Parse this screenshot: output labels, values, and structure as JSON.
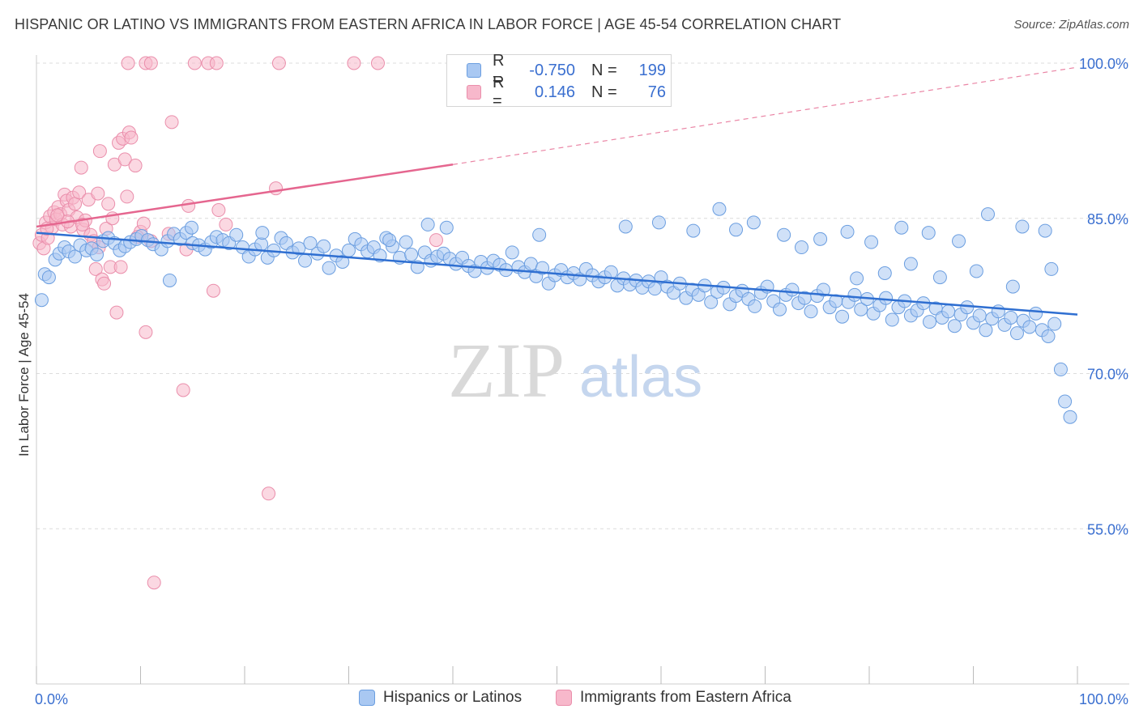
{
  "header": {
    "title": "HISPANIC OR LATINO VS IMMIGRANTS FROM EASTERN AFRICA IN LABOR FORCE | AGE 45-54 CORRELATION CHART",
    "source": "Source: ZipAtlas.com"
  },
  "watermark": {
    "zip": "ZIP",
    "atlas": "atlas"
  },
  "legend_top": [
    {
      "r_label": "R =",
      "r_value": "-0.750",
      "n_label": "N =",
      "n_value": "199"
    },
    {
      "r_label": "R =",
      "r_value": "0.146",
      "n_label": "N =",
      "n_value": "76"
    }
  ],
  "legend_bottom": [
    "Hispanics or Latinos",
    "Immigrants from Eastern Africa"
  ],
  "colors": {
    "blue_fill": "#a9c8f2",
    "blue_stroke": "#6b9ee0",
    "blue_line": "#2f6fd1",
    "pink_fill": "#f7b8cb",
    "pink_stroke": "#ea8eab",
    "pink_line": "#e5668f",
    "tick_label": "#3a6fd0",
    "grid": "#dcdcdc"
  },
  "chart_data": {
    "type": "scatter",
    "title": "HISPANIC OR LATINO VS IMMIGRANTS FROM EASTERN AFRICA IN LABOR FORCE | AGE 45-54 CORRELATION CHART",
    "xlabel": "",
    "ylabel": "In Labor Force | Age 45-54",
    "xlim": [
      0,
      100
    ],
    "ylim": [
      40,
      100
    ],
    "x_tick_labels": [
      "0.0%",
      "100.0%"
    ],
    "y_ticks": [
      55,
      70,
      85,
      100
    ],
    "y_tick_labels": [
      "55.0%",
      "70.0%",
      "85.0%",
      "100.0%"
    ],
    "grid": "horizontal dashed",
    "legend_position": "top-center",
    "series": [
      {
        "name": "Hispanics or Latinos",
        "color": "#a9c8f2",
        "R": -0.75,
        "N": 199,
        "trend": {
          "x": [
            0,
            100
          ],
          "y": [
            83.6,
            75.7
          ],
          "style": "solid"
        },
        "points": [
          [
            0.5,
            77.1
          ],
          [
            0.8,
            79.6
          ],
          [
            1.2,
            79.3
          ],
          [
            1.8,
            81.0
          ],
          [
            2.2,
            81.6
          ],
          [
            2.7,
            82.2
          ],
          [
            3.1,
            81.8
          ],
          [
            3.7,
            81.3
          ],
          [
            4.2,
            82.4
          ],
          [
            4.8,
            81.9
          ],
          [
            5.3,
            82.1
          ],
          [
            5.8,
            81.5
          ],
          [
            6.4,
            82.8
          ],
          [
            6.9,
            83.1
          ],
          [
            7.5,
            82.6
          ],
          [
            8.0,
            81.9
          ],
          [
            8.5,
            82.3
          ],
          [
            9.0,
            82.7
          ],
          [
            9.6,
            83.0
          ],
          [
            10.1,
            83.3
          ],
          [
            10.7,
            82.9
          ],
          [
            11.2,
            82.5
          ],
          [
            12.0,
            82.0
          ],
          [
            12.6,
            82.8
          ],
          [
            13.2,
            83.5
          ],
          [
            13.8,
            83.0
          ],
          [
            14.4,
            83.6
          ],
          [
            15.0,
            82.6
          ],
          [
            15.6,
            82.4
          ],
          [
            16.2,
            82.0
          ],
          [
            16.8,
            82.7
          ],
          [
            17.3,
            83.2
          ],
          [
            17.9,
            82.9
          ],
          [
            18.5,
            82.6
          ],
          [
            19.2,
            83.4
          ],
          [
            19.8,
            82.2
          ],
          [
            20.4,
            81.3
          ],
          [
            21.0,
            82.0
          ],
          [
            21.6,
            82.5
          ],
          [
            22.2,
            81.2
          ],
          [
            22.8,
            81.9
          ],
          [
            23.5,
            83.1
          ],
          [
            24.0,
            82.6
          ],
          [
            24.6,
            81.7
          ],
          [
            25.2,
            82.1
          ],
          [
            25.8,
            80.9
          ],
          [
            26.3,
            82.6
          ],
          [
            27.0,
            81.6
          ],
          [
            27.6,
            82.3
          ],
          [
            28.1,
            80.2
          ],
          [
            28.8,
            81.4
          ],
          [
            29.4,
            80.8
          ],
          [
            30.0,
            81.9
          ],
          [
            30.6,
            83.0
          ],
          [
            31.2,
            82.5
          ],
          [
            31.8,
            81.8
          ],
          [
            32.4,
            82.2
          ],
          [
            33.0,
            81.4
          ],
          [
            33.6,
            83.1
          ],
          [
            34.2,
            82.3
          ],
          [
            34.9,
            81.2
          ],
          [
            35.5,
            82.7
          ],
          [
            36.0,
            81.5
          ],
          [
            36.6,
            80.3
          ],
          [
            37.3,
            81.7
          ],
          [
            37.9,
            80.9
          ],
          [
            38.5,
            81.3
          ],
          [
            39.1,
            81.6
          ],
          [
            39.7,
            81.1
          ],
          [
            40.3,
            80.6
          ],
          [
            40.9,
            81.2
          ],
          [
            41.5,
            80.4
          ],
          [
            42.1,
            79.9
          ],
          [
            42.7,
            80.8
          ],
          [
            43.3,
            80.2
          ],
          [
            43.9,
            80.9
          ],
          [
            44.5,
            80.5
          ],
          [
            45.1,
            80.0
          ],
          [
            45.7,
            81.7
          ],
          [
            46.3,
            80.3
          ],
          [
            46.9,
            79.8
          ],
          [
            47.5,
            80.6
          ],
          [
            48.0,
            79.4
          ],
          [
            48.6,
            80.2
          ],
          [
            49.2,
            78.7
          ],
          [
            49.8,
            79.5
          ],
          [
            50.4,
            80.0
          ],
          [
            51.0,
            79.3
          ],
          [
            51.6,
            79.7
          ],
          [
            52.2,
            79.1
          ],
          [
            52.8,
            80.1
          ],
          [
            53.4,
            79.5
          ],
          [
            54.0,
            78.9
          ],
          [
            54.6,
            79.3
          ],
          [
            55.2,
            79.8
          ],
          [
            55.8,
            78.5
          ],
          [
            56.4,
            79.2
          ],
          [
            57.0,
            78.6
          ],
          [
            57.6,
            79.0
          ],
          [
            58.2,
            78.3
          ],
          [
            58.8,
            78.9
          ],
          [
            59.4,
            78.2
          ],
          [
            60.0,
            79.3
          ],
          [
            60.6,
            78.4
          ],
          [
            61.2,
            77.8
          ],
          [
            61.8,
            78.7
          ],
          [
            62.4,
            77.3
          ],
          [
            63.0,
            78.1
          ],
          [
            63.6,
            77.6
          ],
          [
            64.2,
            78.5
          ],
          [
            64.8,
            76.9
          ],
          [
            65.4,
            77.9
          ],
          [
            66.0,
            78.3
          ],
          [
            66.6,
            76.7
          ],
          [
            67.2,
            77.5
          ],
          [
            67.8,
            78.0
          ],
          [
            68.4,
            77.2
          ],
          [
            69.0,
            76.5
          ],
          [
            69.6,
            77.8
          ],
          [
            70.2,
            78.4
          ],
          [
            70.8,
            77.0
          ],
          [
            71.4,
            76.2
          ],
          [
            72.0,
            77.6
          ],
          [
            72.6,
            78.1
          ],
          [
            73.2,
            76.8
          ],
          [
            73.8,
            77.3
          ],
          [
            74.4,
            76.0
          ],
          [
            75.0,
            77.5
          ],
          [
            75.6,
            78.1
          ],
          [
            76.2,
            76.4
          ],
          [
            76.8,
            77.0
          ],
          [
            77.4,
            75.5
          ],
          [
            78.0,
            76.9
          ],
          [
            78.6,
            77.6
          ],
          [
            79.2,
            76.2
          ],
          [
            79.8,
            77.2
          ],
          [
            80.4,
            75.8
          ],
          [
            81.0,
            76.6
          ],
          [
            81.6,
            77.3
          ],
          [
            82.2,
            75.2
          ],
          [
            82.8,
            76.4
          ],
          [
            83.4,
            77.0
          ],
          [
            84.0,
            75.6
          ],
          [
            84.6,
            76.1
          ],
          [
            85.2,
            76.8
          ],
          [
            85.8,
            75.0
          ],
          [
            86.4,
            76.3
          ],
          [
            87.0,
            75.4
          ],
          [
            87.6,
            76.0
          ],
          [
            88.2,
            74.6
          ],
          [
            88.8,
            75.7
          ],
          [
            89.4,
            76.4
          ],
          [
            90.0,
            74.9
          ],
          [
            90.6,
            75.6
          ],
          [
            91.2,
            74.2
          ],
          [
            91.8,
            75.3
          ],
          [
            92.4,
            76.0
          ],
          [
            93.0,
            74.7
          ],
          [
            93.6,
            75.4
          ],
          [
            94.2,
            73.9
          ],
          [
            94.8,
            75.1
          ],
          [
            95.4,
            74.5
          ],
          [
            96.0,
            75.8
          ],
          [
            96.6,
            74.2
          ],
          [
            97.2,
            73.6
          ],
          [
            97.8,
            74.8
          ],
          [
            98.4,
            70.4
          ],
          [
            98.8,
            67.3
          ],
          [
            99.3,
            65.8
          ],
          [
            12.8,
            79.0
          ],
          [
            14.9,
            84.1
          ],
          [
            21.7,
            83.6
          ],
          [
            33.9,
            82.9
          ],
          [
            37.6,
            84.4
          ],
          [
            39.4,
            84.1
          ],
          [
            48.3,
            83.4
          ],
          [
            56.6,
            84.2
          ],
          [
            59.8,
            84.6
          ],
          [
            63.1,
            83.8
          ],
          [
            65.6,
            85.9
          ],
          [
            67.2,
            83.9
          ],
          [
            68.9,
            84.6
          ],
          [
            71.8,
            83.4
          ],
          [
            73.5,
            82.2
          ],
          [
            75.3,
            83.0
          ],
          [
            77.9,
            83.7
          ],
          [
            80.2,
            82.7
          ],
          [
            83.1,
            84.1
          ],
          [
            85.7,
            83.6
          ],
          [
            88.6,
            82.8
          ],
          [
            91.4,
            85.4
          ],
          [
            94.7,
            84.2
          ],
          [
            96.9,
            83.8
          ],
          [
            97.5,
            80.1
          ],
          [
            93.8,
            78.4
          ],
          [
            90.3,
            79.9
          ],
          [
            86.8,
            79.3
          ],
          [
            84.0,
            80.6
          ],
          [
            81.5,
            79.7
          ],
          [
            78.8,
            79.2
          ]
        ]
      },
      {
        "name": "Immigrants from Eastern Africa",
        "color": "#f7b8cb",
        "R": 0.146,
        "N": 76,
        "trend": {
          "x": [
            0,
            40
          ],
          "y": [
            84.2,
            90.2
          ],
          "style": "solid",
          "extension": {
            "x": [
              40,
              100
            ],
            "y": [
              90.2,
              99.6
            ],
            "style": "dashed"
          }
        },
        "points": [
          [
            0.3,
            82.6
          ],
          [
            0.5,
            83.4
          ],
          [
            0.7,
            82.1
          ],
          [
            0.9,
            84.6
          ],
          [
            1.1,
            83.1
          ],
          [
            1.3,
            85.2
          ],
          [
            1.5,
            84.1
          ],
          [
            1.7,
            85.6
          ],
          [
            1.9,
            84.9
          ],
          [
            2.1,
            86.1
          ],
          [
            2.3,
            85.4
          ],
          [
            2.5,
            84.4
          ],
          [
            2.7,
            87.3
          ],
          [
            2.9,
            86.7
          ],
          [
            3.1,
            85.8
          ],
          [
            3.3,
            84.2
          ],
          [
            3.5,
            87.0
          ],
          [
            3.7,
            86.4
          ],
          [
            3.9,
            85.1
          ],
          [
            4.1,
            87.5
          ],
          [
            4.3,
            89.9
          ],
          [
            4.5,
            83.9
          ],
          [
            4.7,
            84.8
          ],
          [
            5.0,
            86.8
          ],
          [
            5.2,
            83.4
          ],
          [
            5.5,
            82.8
          ],
          [
            5.7,
            80.1
          ],
          [
            5.9,
            87.4
          ],
          [
            6.1,
            91.5
          ],
          [
            6.3,
            79.1
          ],
          [
            6.5,
            78.7
          ],
          [
            6.7,
            84.0
          ],
          [
            6.9,
            86.4
          ],
          [
            7.1,
            80.3
          ],
          [
            7.3,
            85.0
          ],
          [
            7.5,
            90.2
          ],
          [
            7.7,
            75.9
          ],
          [
            7.9,
            92.3
          ],
          [
            8.1,
            80.3
          ],
          [
            8.3,
            92.7
          ],
          [
            8.5,
            90.7
          ],
          [
            8.7,
            87.1
          ],
          [
            8.9,
            93.3
          ],
          [
            9.1,
            92.8
          ],
          [
            9.5,
            90.1
          ],
          [
            10.0,
            83.7
          ],
          [
            10.3,
            84.5
          ],
          [
            10.5,
            74.0
          ],
          [
            11.0,
            82.8
          ],
          [
            11.3,
            49.8
          ],
          [
            13.0,
            94.3
          ],
          [
            14.1,
            68.4
          ],
          [
            14.4,
            82.0
          ],
          [
            14.6,
            86.2
          ],
          [
            17.0,
            78.0
          ],
          [
            17.5,
            85.8
          ],
          [
            18.2,
            84.4
          ],
          [
            22.3,
            58.4
          ],
          [
            23.0,
            87.9
          ],
          [
            38.4,
            82.9
          ],
          [
            8.8,
            100.0
          ],
          [
            10.5,
            100.0
          ],
          [
            11.0,
            100.0
          ],
          [
            15.2,
            100.0
          ],
          [
            16.5,
            100.0
          ],
          [
            17.3,
            100.0
          ],
          [
            23.3,
            100.0
          ],
          [
            30.5,
            100.0
          ],
          [
            32.8,
            100.0
          ],
          [
            4.4,
            84.4
          ],
          [
            3.0,
            84.7
          ],
          [
            2.0,
            85.3
          ],
          [
            6.0,
            82.2
          ],
          [
            9.7,
            83.2
          ],
          [
            12.7,
            83.5
          ],
          [
            1.0,
            84.0
          ]
        ]
      }
    ]
  }
}
